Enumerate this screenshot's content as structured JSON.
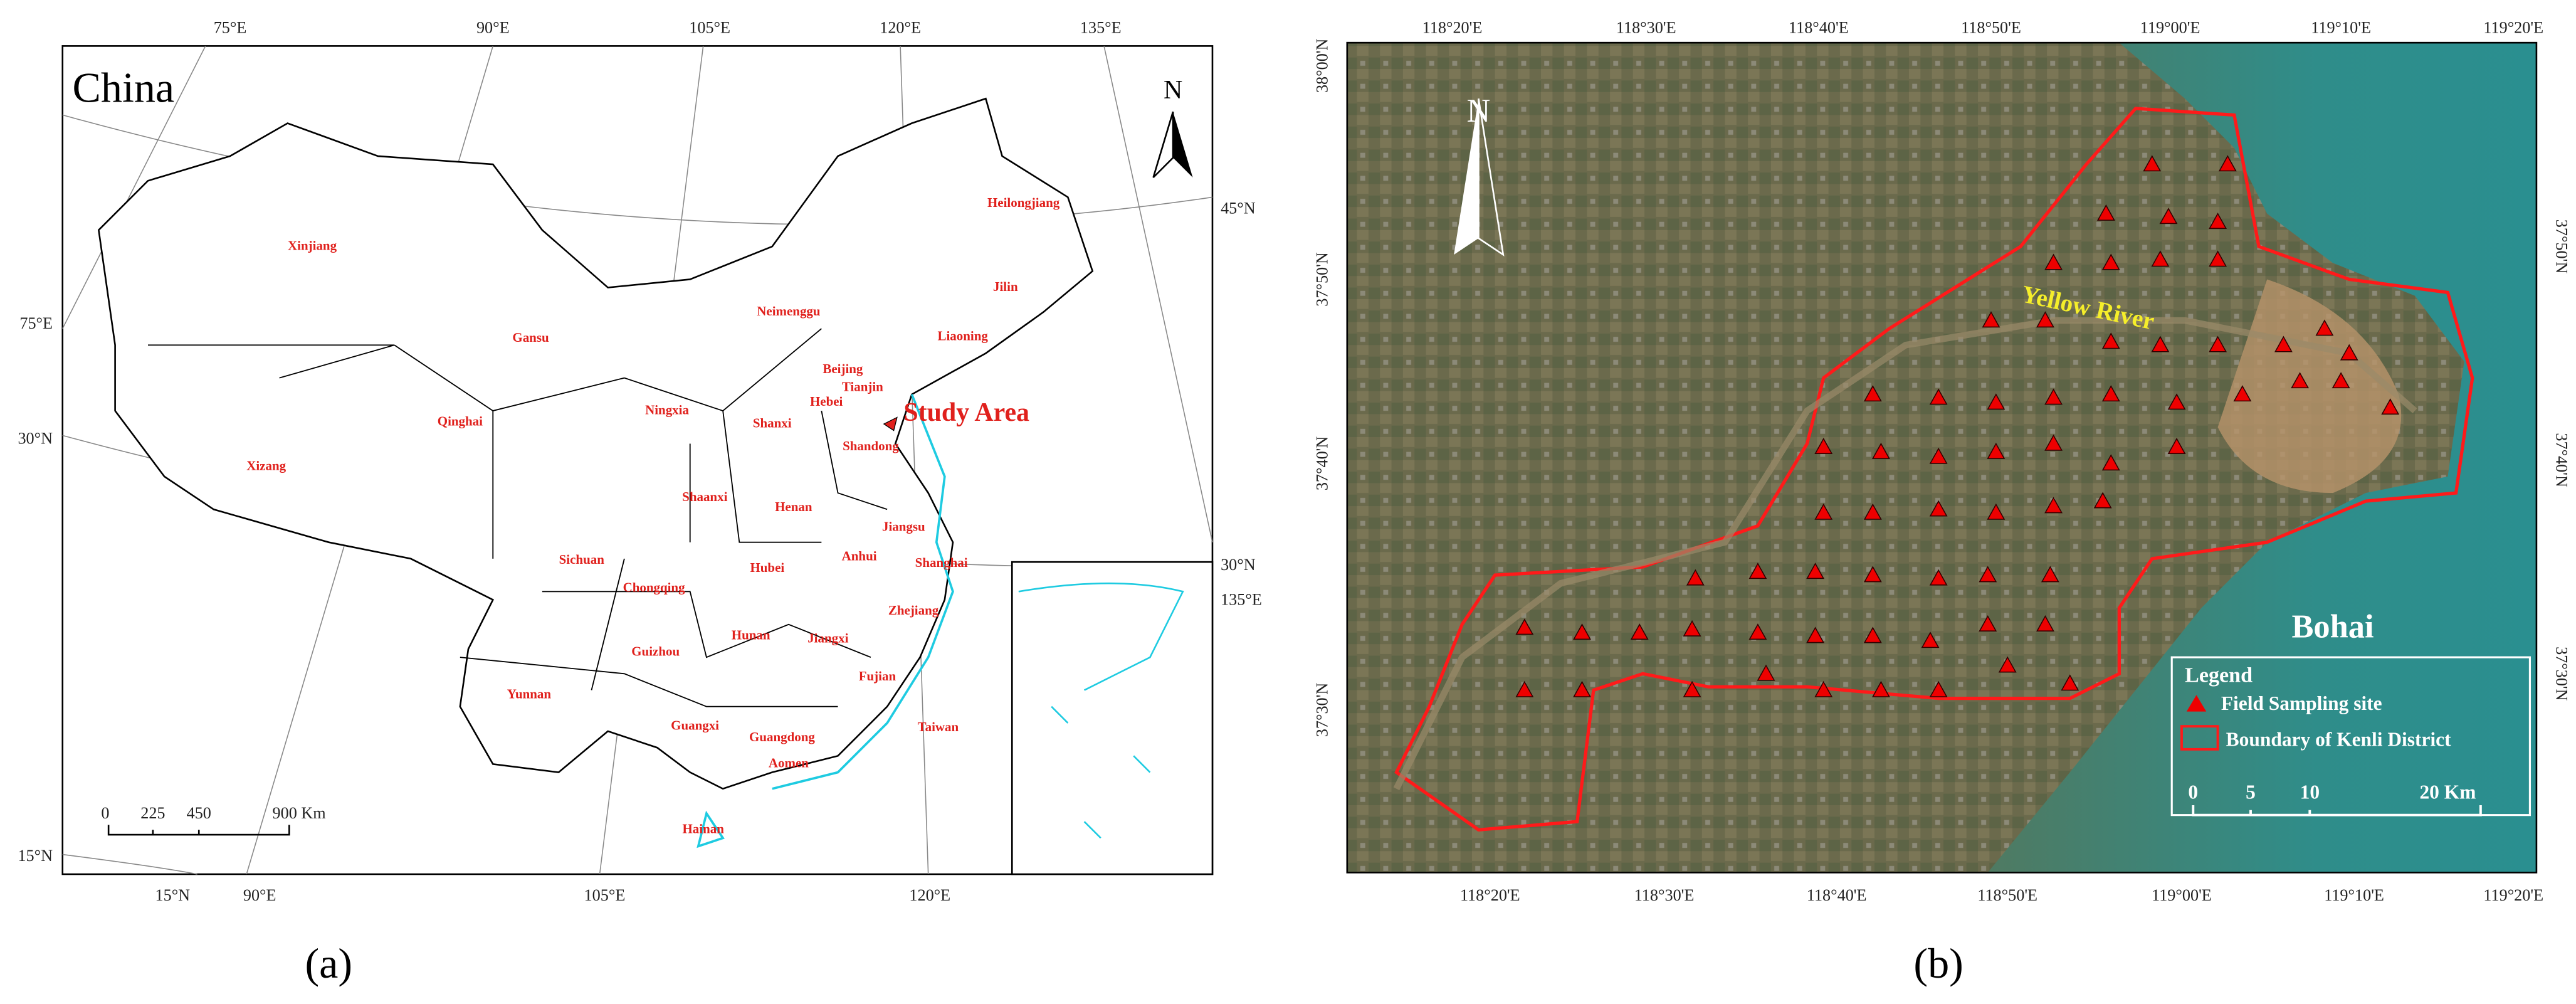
{
  "panel_a": {
    "title": "China",
    "north": "N",
    "study_area": "Study Area",
    "provinces": [
      "Xinjiang",
      "Xizang",
      "Qinghai",
      "Gansu",
      "Neimenggu",
      "Heilongjiang",
      "Jilin",
      "Liaoning",
      "Beijing",
      "Tianjin",
      "Hebei",
      "Ningxia",
      "Shanxi",
      "Shandong",
      "Shaanxi",
      "Henan",
      "Jiangsu",
      "Sichuan",
      "Anhui",
      "Shanghai",
      "Chongqing",
      "Hubei",
      "Zhejiang",
      "Hunan",
      "Guizhou",
      "Jiangxi",
      "Yunnan",
      "Fujian",
      "Guangxi",
      "Taiwan",
      "Guangdong",
      "Aomen",
      "Hainan"
    ],
    "top_labels": [
      "75°E",
      "90°E",
      "105°E",
      "120°E",
      "135°E"
    ],
    "bottom_labels": [
      "15°N",
      "90°E",
      "105°E",
      "120°E"
    ],
    "left_labels": [
      "75°E",
      "30°N",
      "15°N"
    ],
    "right_labels": [
      "45°N",
      "30°N",
      "135°E"
    ],
    "scale_bar": [
      "0",
      "225",
      "450",
      "900 Km"
    ],
    "caption": "(a)"
  },
  "panel_b": {
    "north": "N",
    "river": "Yellow River",
    "sea": "Bohai",
    "top_labels": [
      "118°20'E",
      "118°30'E",
      "118°40'E",
      "118°50'E",
      "119°00'E",
      "119°10'E",
      "119°20'E"
    ],
    "bottom_labels": [
      "118°20'E",
      "118°30'E",
      "118°40'E",
      "118°50'E",
      "119°00'E",
      "119°10'E",
      "119°20'E"
    ],
    "left_labels": [
      "38°00'N",
      "37°50'N",
      "37°40'N",
      "37°30'N"
    ],
    "right_labels": [
      "37°50'N",
      "37°40'N",
      "37°30'N"
    ],
    "legend": {
      "title": "Legend",
      "items": [
        "Field Sampling site",
        "Boundary of Kenli District"
      ]
    },
    "scale_bar": [
      "0",
      "5",
      "10",
      "20 Km"
    ],
    "caption": "(b)"
  }
}
